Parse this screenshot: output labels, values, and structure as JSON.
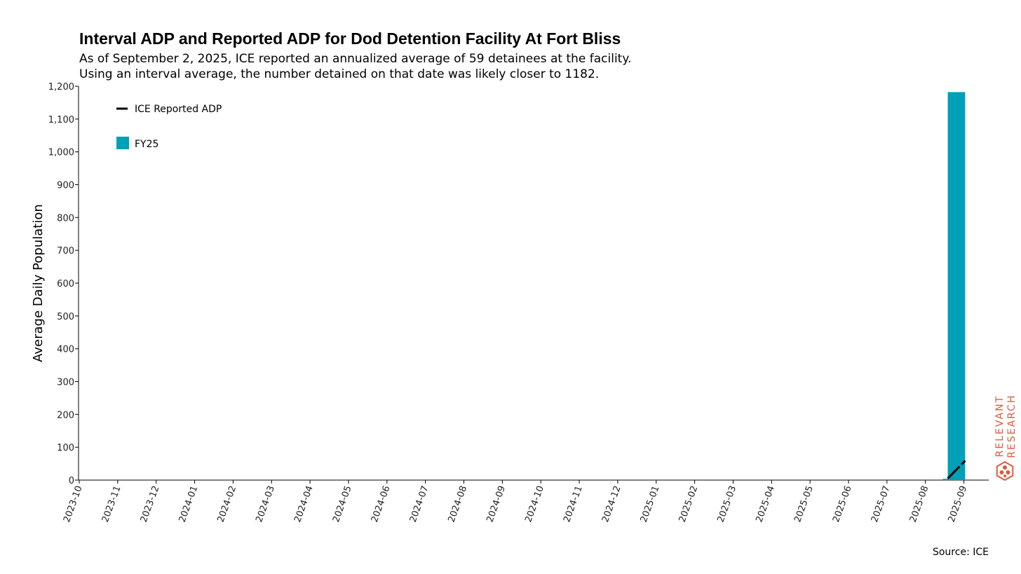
{
  "chart_data": {
    "type": "bar",
    "title": "Interval ADP and Reported ADP for Dod Detention Facility At Fort Bliss",
    "subtitle_lines": [
      "As of September 2, 2025, ICE reported an annualized average of 59 detainees at the facility.",
      "Using an interval average, the number detained on that date was likely closer to 1182."
    ],
    "xlabel": "",
    "ylabel": "Average Daily Population",
    "x_ticks": [
      "2023-10",
      "2023-11",
      "2023-12",
      "2024-01",
      "2024-02",
      "2024-03",
      "2024-04",
      "2024-05",
      "2024-06",
      "2024-07",
      "2024-08",
      "2024-09",
      "2024-10",
      "2024-11",
      "2024-12",
      "2025-01",
      "2025-02",
      "2025-03",
      "2025-04",
      "2025-05",
      "2025-06",
      "2025-07",
      "2025-08",
      "2025-09"
    ],
    "x_range": [
      "2023-10-01",
      "2025-10-01"
    ],
    "ylim": [
      0,
      1200
    ],
    "y_ticks": [
      0,
      100,
      200,
      300,
      400,
      500,
      600,
      700,
      800,
      900,
      1000,
      1100,
      1200
    ],
    "y_tick_labels": [
      "0",
      "100",
      "200",
      "300",
      "400",
      "500",
      "600",
      "700",
      "800",
      "900",
      "1,000",
      "1,100",
      "1,200"
    ],
    "bars": {
      "name": "FY25",
      "color": "#00A0B8",
      "points": [
        {
          "start": "2025-08-15",
          "end": "2025-08-19",
          "value": 4
        },
        {
          "start": "2025-08-19",
          "end": "2025-09-02",
          "value": 1182
        }
      ]
    },
    "line": {
      "name": "ICE Reported ADP",
      "color": "#000000",
      "dash": "segments",
      "points": [
        {
          "date": "2025-08-19",
          "value": 5
        },
        {
          "date": "2025-09-02",
          "value": 59
        }
      ]
    },
    "legend": {
      "position": "top-left",
      "entries": [
        {
          "label": "ICE Reported ADP",
          "kind": "line",
          "color": "#000000"
        },
        {
          "label": "FY25",
          "kind": "box",
          "color": "#00A0B8"
        }
      ]
    },
    "grid": false
  },
  "source_text": "Source: ICE",
  "logo": {
    "line1": "RELEVANT",
    "line2": "RESEARCH",
    "color": "#E05A3C"
  }
}
